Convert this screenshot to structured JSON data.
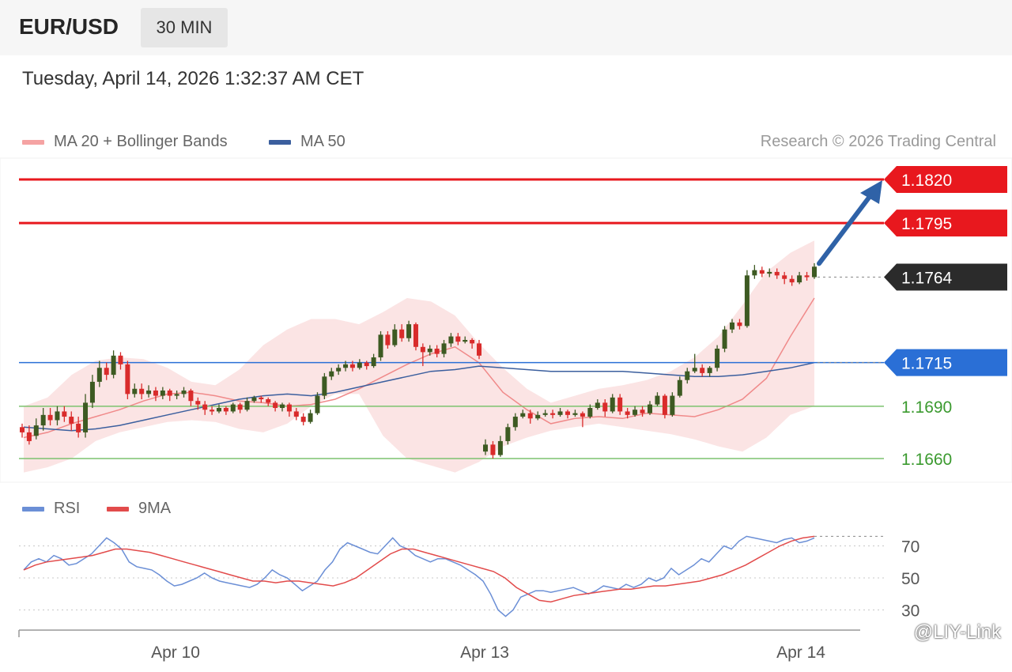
{
  "header": {
    "pair": "EUR/USD",
    "timeframe": "30 MIN",
    "datetime": "Tuesday, April 14, 2026 1:32:37 AM CET"
  },
  "legend": {
    "ma20_bb": "MA 20 + Bollinger Bands",
    "ma50": "MA 50",
    "credit": "Research © 2026 Trading Central",
    "rsi": "RSI",
    "rsi_ma": "9MA"
  },
  "colors": {
    "resistance": "#e8181e",
    "pivot": "#2a6fd6",
    "support": "#7cc26e",
    "support_text": "#3b9a2f",
    "current": "#2b2b2b",
    "up_candle": "#3d5a22",
    "down_candle": "#d92b2b",
    "bands": "#fbe1e1",
    "ma20": "#f08a8a",
    "ma50": "#3b5f9e",
    "arrow": "#2f62a7",
    "rsi": "#6b8fd6",
    "rsi_ma": "#e24b4b"
  },
  "watermark": "@LIY-Link",
  "chart_data": [
    {
      "type": "line",
      "title": "",
      "x_ticks": [
        "Apr 10",
        "Apr 13",
        "Apr 14"
      ],
      "levels": [
        {
          "label": "1.1820",
          "value": 1.182,
          "kind": "resistance"
        },
        {
          "label": "1.1795",
          "value": 1.1795,
          "kind": "resistance"
        },
        {
          "label": "1.1764",
          "value": 1.1764,
          "kind": "current"
        },
        {
          "label": "1.1715",
          "value": 1.1715,
          "kind": "pivot"
        },
        {
          "label": "1.1690",
          "value": 1.169,
          "kind": "support"
        },
        {
          "label": "1.1660",
          "value": 1.166,
          "kind": "support"
        }
      ],
      "candles": [
        [
          1.1678,
          1.1675,
          1.168,
          1.1672
        ],
        [
          1.1675,
          1.167,
          1.1679,
          1.1668
        ],
        [
          1.1673,
          1.1679,
          1.1683,
          1.1671
        ],
        [
          1.1679,
          1.1685,
          1.1689,
          1.1676
        ],
        [
          1.1685,
          1.1682,
          1.1689,
          1.1679
        ],
        [
          1.1682,
          1.1687,
          1.169,
          1.1679
        ],
        [
          1.1687,
          1.1684,
          1.169,
          1.1681
        ],
        [
          1.1684,
          1.168,
          1.1687,
          1.1676
        ],
        [
          1.168,
          1.1675,
          1.1684,
          1.1672
        ],
        [
          1.1675,
          1.1692,
          1.1697,
          1.1672
        ],
        [
          1.1692,
          1.1704,
          1.1708,
          1.1689
        ],
        [
          1.1704,
          1.1712,
          1.1716,
          1.1701
        ],
        [
          1.1712,
          1.1708,
          1.1715,
          1.1705
        ],
        [
          1.1708,
          1.1719,
          1.1722,
          1.1706
        ],
        [
          1.1719,
          1.1714,
          1.1721,
          1.1711
        ],
        [
          1.1714,
          1.1697,
          1.1716,
          1.1694
        ],
        [
          1.1697,
          1.17,
          1.1703,
          1.1695
        ],
        [
          1.17,
          1.1697,
          1.1703,
          1.1694
        ],
        [
          1.1697,
          1.1699,
          1.1702,
          1.1695
        ],
        [
          1.1699,
          1.1696,
          1.1701,
          1.1693
        ],
        [
          1.1696,
          1.1699,
          1.1701,
          1.1694
        ],
        [
          1.1699,
          1.1696,
          1.17,
          1.1693
        ],
        [
          1.1696,
          1.1697,
          1.1699,
          1.1694
        ],
        [
          1.1697,
          1.1699,
          1.1701,
          1.1695
        ],
        [
          1.1699,
          1.1693,
          1.17,
          1.169
        ],
        [
          1.1693,
          1.1691,
          1.1695,
          1.1688
        ],
        [
          1.1691,
          1.1688,
          1.1693,
          1.1685
        ],
        [
          1.1688,
          1.1687,
          1.169,
          1.1685
        ],
        [
          1.1687,
          1.1689,
          1.1691,
          1.1686
        ],
        [
          1.1689,
          1.1687,
          1.169,
          1.1685
        ],
        [
          1.1687,
          1.1691,
          1.1692,
          1.1686
        ],
        [
          1.1691,
          1.1688,
          1.1692,
          1.1686
        ],
        [
          1.1688,
          1.1693,
          1.1695,
          1.1687
        ],
        [
          1.1693,
          1.1695,
          1.1696,
          1.1692
        ],
        [
          1.1695,
          1.1694,
          1.1696,
          1.1692
        ],
        [
          1.1694,
          1.1692,
          1.1695,
          1.169
        ],
        [
          1.1692,
          1.1689,
          1.1693,
          1.1687
        ],
        [
          1.1689,
          1.1691,
          1.1692,
          1.1687
        ],
        [
          1.1691,
          1.1687,
          1.1692,
          1.1684
        ],
        [
          1.1687,
          1.1684,
          1.1689,
          1.1682
        ],
        [
          1.1684,
          1.1681,
          1.1686,
          1.1679
        ],
        [
          1.1681,
          1.1686,
          1.1688,
          1.168
        ],
        [
          1.1686,
          1.1696,
          1.1698,
          1.1685
        ],
        [
          1.1696,
          1.1707,
          1.1709,
          1.1694
        ],
        [
          1.1707,
          1.171,
          1.1712,
          1.1705
        ],
        [
          1.171,
          1.1712,
          1.1714,
          1.1708
        ],
        [
          1.1712,
          1.1714,
          1.1716,
          1.171
        ],
        [
          1.1714,
          1.1712,
          1.1716,
          1.171
        ],
        [
          1.1712,
          1.1715,
          1.1717,
          1.1711
        ],
        [
          1.1715,
          1.1713,
          1.1716,
          1.1711
        ],
        [
          1.1713,
          1.1718,
          1.172,
          1.1712
        ],
        [
          1.1718,
          1.1731,
          1.1733,
          1.1716
        ],
        [
          1.1731,
          1.1725,
          1.1733,
          1.1723
        ],
        [
          1.1725,
          1.1734,
          1.1737,
          1.1724
        ],
        [
          1.1734,
          1.1729,
          1.1737,
          1.1727
        ],
        [
          1.1729,
          1.1737,
          1.1739,
          1.1727
        ],
        [
          1.1737,
          1.1724,
          1.1738,
          1.1722
        ],
        [
          1.1724,
          1.1721,
          1.1726,
          1.1713
        ],
        [
          1.1721,
          1.1723,
          1.1725,
          1.1719
        ],
        [
          1.1723,
          1.172,
          1.1725,
          1.1718
        ],
        [
          1.172,
          1.1726,
          1.1728,
          1.1718
        ],
        [
          1.1726,
          1.173,
          1.1732,
          1.1724
        ],
        [
          1.173,
          1.1727,
          1.1732,
          1.1725
        ],
        [
          1.1727,
          1.1728,
          1.173,
          1.1726
        ],
        [
          1.1728,
          1.1726,
          1.1729,
          1.1723
        ],
        [
          1.1726,
          1.1719,
          1.1728,
          1.1717
        ],
        [
          1.1664,
          1.1668,
          1.1671,
          1.1662
        ],
        [
          1.1668,
          1.1662,
          1.167,
          1.166
        ],
        [
          1.1662,
          1.167,
          1.1673,
          1.1661
        ],
        [
          1.167,
          1.1678,
          1.168,
          1.1668
        ],
        [
          1.1678,
          1.1684,
          1.1686,
          1.1676
        ],
        [
          1.1684,
          1.1686,
          1.1688,
          1.1683
        ],
        [
          1.1686,
          1.1683,
          1.1688,
          1.168
        ],
        [
          1.1683,
          1.1685,
          1.1687,
          1.1682
        ],
        [
          1.1685,
          1.1686,
          1.1688,
          1.1684
        ],
        [
          1.1686,
          1.1685,
          1.1688,
          1.1683
        ],
        [
          1.1685,
          1.1687,
          1.1689,
          1.1684
        ],
        [
          1.1687,
          1.1685,
          1.1688,
          1.1683
        ],
        [
          1.1685,
          1.1686,
          1.1688,
          1.1684
        ],
        [
          1.1686,
          1.1684,
          1.1687,
          1.1678
        ],
        [
          1.1684,
          1.1689,
          1.1691,
          1.1683
        ],
        [
          1.1689,
          1.1692,
          1.1694,
          1.1688
        ],
        [
          1.1692,
          1.1687,
          1.1694,
          1.1684
        ],
        [
          1.1687,
          1.1695,
          1.1697,
          1.1686
        ],
        [
          1.1695,
          1.1687,
          1.1697,
          1.1685
        ],
        [
          1.1687,
          1.1685,
          1.1689,
          1.1683
        ],
        [
          1.1685,
          1.1688,
          1.169,
          1.1684
        ],
        [
          1.1688,
          1.1686,
          1.169,
          1.1684
        ],
        [
          1.1686,
          1.1691,
          1.1693,
          1.1685
        ],
        [
          1.1691,
          1.1696,
          1.1698,
          1.169
        ],
        [
          1.1696,
          1.1685,
          1.1697,
          1.1683
        ],
        [
          1.1685,
          1.1696,
          1.1698,
          1.1684
        ],
        [
          1.1696,
          1.1705,
          1.1707,
          1.1695
        ],
        [
          1.1705,
          1.171,
          1.1712,
          1.1703
        ],
        [
          1.171,
          1.1712,
          1.172,
          1.1709
        ],
        [
          1.1712,
          1.1709,
          1.1714,
          1.1707
        ],
        [
          1.1709,
          1.1712,
          1.1713,
          1.1707
        ],
        [
          1.1712,
          1.1723,
          1.1725,
          1.171
        ],
        [
          1.1723,
          1.1734,
          1.1736,
          1.1721
        ],
        [
          1.1734,
          1.1738,
          1.174,
          1.1732
        ],
        [
          1.1738,
          1.1736,
          1.174,
          1.1734
        ],
        [
          1.1736,
          1.1765,
          1.1768,
          1.1735
        ],
        [
          1.1765,
          1.1768,
          1.1771,
          1.1763
        ],
        [
          1.1768,
          1.1766,
          1.177,
          1.1764
        ],
        [
          1.1766,
          1.1767,
          1.1769,
          1.1764
        ],
        [
          1.1767,
          1.1765,
          1.1769,
          1.1763
        ],
        [
          1.1765,
          1.1763,
          1.1767,
          1.176
        ],
        [
          1.1763,
          1.1761,
          1.1765,
          1.1759
        ],
        [
          1.1761,
          1.1765,
          1.1767,
          1.176
        ],
        [
          1.1765,
          1.1764,
          1.1767,
          1.1762
        ],
        [
          1.1764,
          1.177,
          1.1772,
          1.1763
        ]
      ],
      "ma20": [
        1.1672,
        1.1675,
        1.168,
        1.1684,
        1.1688,
        1.1693,
        1.1697,
        1.1698,
        1.1696,
        1.1693,
        1.1692,
        1.169,
        1.1691,
        1.1694,
        1.17,
        1.1707,
        1.1714,
        1.172,
        1.1724,
        1.1715,
        1.1698,
        1.1688,
        1.168,
        1.1683,
        1.1684,
        1.1683,
        1.1686,
        1.1685,
        1.1684,
        1.1688,
        1.1694,
        1.1706,
        1.173,
        1.1752
      ],
      "ma50": [
        1.1678,
        1.1677,
        1.1676,
        1.1677,
        1.1679,
        1.1682,
        1.1685,
        1.1688,
        1.1691,
        1.1694,
        1.1696,
        1.1697,
        1.1696,
        1.1698,
        1.1701,
        1.1704,
        1.1707,
        1.171,
        1.1711,
        1.1713,
        1.1712,
        1.1711,
        1.171,
        1.171,
        1.171,
        1.171,
        1.1709,
        1.1708,
        1.1707,
        1.1707,
        1.1708,
        1.171,
        1.1712,
        1.1715
      ],
      "bb_upper": [
        1.169,
        1.1695,
        1.1708,
        1.1716,
        1.1718,
        1.1717,
        1.1712,
        1.1704,
        1.1702,
        1.1711,
        1.1725,
        1.1734,
        1.174,
        1.174,
        1.1737,
        1.1744,
        1.1752,
        1.175,
        1.1742,
        1.1726,
        1.1712,
        1.17,
        1.1692,
        1.1696,
        1.17,
        1.1702,
        1.1705,
        1.171,
        1.1718,
        1.173,
        1.1748,
        1.1767,
        1.1778,
        1.1785
      ],
      "bb_lower": [
        1.1652,
        1.1655,
        1.166,
        1.167,
        1.1675,
        1.1678,
        1.1681,
        1.1682,
        1.1681,
        1.1677,
        1.1675,
        1.168,
        1.169,
        1.1697,
        1.1697,
        1.1673,
        1.166,
        1.1656,
        1.1652,
        1.1658,
        1.1667,
        1.1672,
        1.1676,
        1.1678,
        1.168,
        1.1678,
        1.1676,
        1.1674,
        1.1671,
        1.1667,
        1.1664,
        1.1672,
        1.1685,
        1.169
      ]
    },
    {
      "type": "line",
      "title": "",
      "y_ticks": [
        "70",
        "50",
        "30"
      ],
      "ylim": [
        20,
        80
      ],
      "series": [
        {
          "name": "RSI",
          "values": [
            55,
            60,
            62,
            60,
            64,
            62,
            58,
            59,
            62,
            65,
            70,
            75,
            72,
            68,
            60,
            57,
            56,
            55,
            52,
            48,
            45,
            46,
            48,
            50,
            53,
            50,
            48,
            47,
            46,
            45,
            44,
            46,
            50,
            55,
            52,
            50,
            46,
            42,
            45,
            48,
            55,
            60,
            68,
            72,
            70,
            68,
            66,
            65,
            70,
            75,
            70,
            68,
            64,
            62,
            60,
            62,
            62,
            60,
            58,
            55,
            52,
            48,
            40,
            30,
            26,
            30,
            38,
            40,
            42,
            42,
            41,
            42,
            43,
            44,
            42,
            40,
            42,
            45,
            44,
            43,
            46,
            44,
            46,
            50,
            48,
            50,
            56,
            52,
            55,
            58,
            62,
            60,
            65,
            70,
            68,
            73,
            76,
            75,
            74,
            73,
            72,
            74,
            75,
            72,
            73,
            75
          ]
        },
        {
          "name": "9MA",
          "values": [
            55,
            58,
            60,
            61,
            62,
            63,
            64,
            66,
            68,
            68,
            67,
            66,
            64,
            62,
            60,
            58,
            56,
            54,
            52,
            50,
            48,
            48,
            47,
            48,
            48,
            47,
            46,
            45,
            47,
            50,
            55,
            60,
            65,
            68,
            68,
            66,
            64,
            62,
            60,
            58,
            56,
            54,
            50,
            44,
            40,
            36,
            35,
            37,
            39,
            40,
            41,
            42,
            43,
            43,
            44,
            45,
            45,
            46,
            47,
            48,
            50,
            52,
            55,
            58,
            62,
            66,
            70,
            73,
            75,
            76
          ]
        }
      ]
    }
  ]
}
